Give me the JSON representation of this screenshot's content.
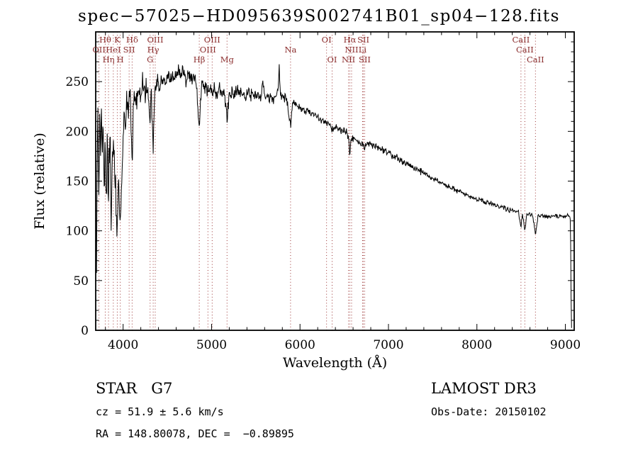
{
  "title": "spec−57025−HD095639S002741B01_sp04−128.fits",
  "colors": {
    "background": "#ffffff",
    "spectrum": "#000000",
    "frame": "#000000",
    "line_marker": "#9B3434",
    "line_label": "#8B2E2E",
    "text": "#000000"
  },
  "annotations": {
    "object_type": "STAR   G7",
    "cz": "cz = 51.9 ± 5.6 km/s",
    "ra_dec": "RA = 148.80078, DEC =  −0.89895",
    "survey": "LAMOST DR3",
    "obs_date": "Obs-Date: 20150102"
  },
  "chart_data": {
    "type": "line",
    "title": "spec−57025−HD095639S002741B01_sp04−128.fits",
    "xlabel": "Wavelength (Å)",
    "ylabel": "Flux (relative)",
    "xlim": [
      3690,
      9100
    ],
    "ylim": [
      0,
      300
    ],
    "x_major_ticks": [
      4000,
      5000,
      6000,
      7000,
      8000,
      9000
    ],
    "x_minor_step": 200,
    "y_major_ticks": [
      0,
      50,
      100,
      150,
      200,
      250
    ],
    "y_minor_step": 10,
    "grid": false,
    "legend": "none",
    "sample_step_angstrom": 5,
    "noise_seed": 20150102,
    "noise_profile": [
      {
        "from": 3700,
        "to": 4000,
        "amp": 30
      },
      {
        "from": 4000,
        "to": 4400,
        "amp": 16
      },
      {
        "from": 4400,
        "to": 5200,
        "amp": 10
      },
      {
        "from": 5200,
        "to": 5900,
        "amp": 7
      },
      {
        "from": 5900,
        "to": 6600,
        "amp": 5
      },
      {
        "from": 6600,
        "to": 7400,
        "amp": 4
      },
      {
        "from": 7400,
        "to": 8500,
        "amp": 3
      },
      {
        "from": 8500,
        "to": 9040,
        "amp": 2.5
      },
      {
        "from": 9040,
        "to": 9100,
        "amp": 1
      }
    ],
    "continuum_points": [
      [
        3700,
        55
      ],
      [
        3706,
        150
      ],
      [
        3712,
        225
      ],
      [
        3720,
        170
      ],
      [
        3728,
        150
      ],
      [
        3736,
        210
      ],
      [
        3744,
        165
      ],
      [
        3752,
        230
      ],
      [
        3760,
        175
      ],
      [
        3772,
        220
      ],
      [
        3784,
        150
      ],
      [
        3796,
        190
      ],
      [
        3808,
        135
      ],
      [
        3820,
        180
      ],
      [
        3835,
        145
      ],
      [
        3850,
        200
      ],
      [
        3865,
        120
      ],
      [
        3880,
        165
      ],
      [
        3895,
        190
      ],
      [
        3910,
        140
      ],
      [
        3925,
        115
      ],
      [
        3934,
        100
      ],
      [
        3945,
        145
      ],
      [
        3960,
        110
      ],
      [
        3968,
        105
      ],
      [
        3980,
        150
      ],
      [
        3995,
        180
      ],
      [
        4010,
        220
      ],
      [
        4025,
        200
      ],
      [
        4040,
        232
      ],
      [
        4060,
        226
      ],
      [
        4080,
        242
      ],
      [
        4102,
        168
      ],
      [
        4115,
        232
      ],
      [
        4130,
        242
      ],
      [
        4150,
        228
      ],
      [
        4170,
        246
      ],
      [
        4190,
        232
      ],
      [
        4210,
        242
      ],
      [
        4230,
        246
      ],
      [
        4250,
        236
      ],
      [
        4270,
        242
      ],
      [
        4290,
        232
      ],
      [
        4305,
        212
      ],
      [
        4320,
        238
      ],
      [
        4340,
        178
      ],
      [
        4355,
        242
      ],
      [
        4370,
        246
      ],
      [
        4390,
        250
      ],
      [
        4420,
        246
      ],
      [
        4450,
        255
      ],
      [
        4480,
        250
      ],
      [
        4510,
        256
      ],
      [
        4540,
        250
      ],
      [
        4560,
        258
      ],
      [
        4590,
        252
      ],
      [
        4620,
        262
      ],
      [
        4650,
        256
      ],
      [
        4680,
        260
      ],
      [
        4710,
        252
      ],
      [
        4740,
        258
      ],
      [
        4770,
        250
      ],
      [
        4800,
        254
      ],
      [
        4830,
        246
      ],
      [
        4861,
        202
      ],
      [
        4880,
        240
      ],
      [
        4900,
        248
      ],
      [
        4930,
        243
      ],
      [
        4960,
        240
      ],
      [
        4990,
        245
      ],
      [
        5007,
        238
      ],
      [
        5030,
        242
      ],
      [
        5060,
        238
      ],
      [
        5090,
        243
      ],
      [
        5120,
        240
      ],
      [
        5150,
        236
      ],
      [
        5175,
        216
      ],
      [
        5200,
        236
      ],
      [
        5230,
        240
      ],
      [
        5260,
        238
      ],
      [
        5290,
        242
      ],
      [
        5320,
        238
      ],
      [
        5350,
        240
      ],
      [
        5380,
        236
      ],
      [
        5410,
        239
      ],
      [
        5440,
        236
      ],
      [
        5470,
        238
      ],
      [
        5500,
        236
      ],
      [
        5530,
        234
      ],
      [
        5560,
        236
      ],
      [
        5577,
        250
      ],
      [
        5600,
        235
      ],
      [
        5630,
        236
      ],
      [
        5660,
        234
      ],
      [
        5690,
        233
      ],
      [
        5720,
        234
      ],
      [
        5750,
        238
      ],
      [
        5765,
        263
      ],
      [
        5780,
        237
      ],
      [
        5800,
        234
      ],
      [
        5830,
        232
      ],
      [
        5860,
        230
      ],
      [
        5893,
        206
      ],
      [
        5915,
        228
      ],
      [
        5945,
        227
      ],
      [
        5975,
        226
      ],
      [
        6010,
        224
      ],
      [
        6050,
        222
      ],
      [
        6090,
        220
      ],
      [
        6130,
        218
      ],
      [
        6170,
        216
      ],
      [
        6210,
        214
      ],
      [
        6250,
        212
      ],
      [
        6300,
        208
      ],
      [
        6330,
        207
      ],
      [
        6363,
        203
      ],
      [
        6400,
        205
      ],
      [
        6440,
        203
      ],
      [
        6480,
        201
      ],
      [
        6520,
        199
      ],
      [
        6548,
        194
      ],
      [
        6563,
        178
      ],
      [
        6580,
        193
      ],
      [
        6610,
        193
      ],
      [
        6640,
        191
      ],
      [
        6680,
        190
      ],
      [
        6716,
        186
      ],
      [
        6731,
        184
      ],
      [
        6770,
        188
      ],
      [
        6820,
        186
      ],
      [
        6870,
        184
      ],
      [
        6920,
        182
      ],
      [
        6980,
        179
      ],
      [
        7040,
        176
      ],
      [
        7100,
        173
      ],
      [
        7160,
        170
      ],
      [
        7220,
        167
      ],
      [
        7280,
        164
      ],
      [
        7340,
        161
      ],
      [
        7400,
        158
      ],
      [
        7460,
        155
      ],
      [
        7520,
        152
      ],
      [
        7580,
        149
      ],
      [
        7640,
        146
      ],
      [
        7700,
        144
      ],
      [
        7760,
        141
      ],
      [
        7820,
        139
      ],
      [
        7880,
        136
      ],
      [
        7940,
        134
      ],
      [
        8000,
        132
      ],
      [
        8060,
        130
      ],
      [
        8120,
        128
      ],
      [
        8180,
        127
      ],
      [
        8240,
        125
      ],
      [
        8300,
        123
      ],
      [
        8360,
        121
      ],
      [
        8420,
        120
      ],
      [
        8470,
        119
      ],
      [
        8498,
        103
      ],
      [
        8515,
        118
      ],
      [
        8542,
        100
      ],
      [
        8565,
        117
      ],
      [
        8600,
        116
      ],
      [
        8630,
        116
      ],
      [
        8662,
        96
      ],
      [
        8690,
        115
      ],
      [
        8730,
        115
      ],
      [
        8780,
        114
      ],
      [
        8830,
        114
      ],
      [
        8880,
        115
      ],
      [
        8930,
        114
      ],
      [
        8980,
        115
      ],
      [
        9020,
        116
      ],
      [
        9050,
        114
      ],
      [
        9058,
        110
      ],
      [
        9064,
        40
      ],
      [
        9070,
        2
      ]
    ],
    "spectral_lines": [
      {
        "label": "Hθ",
        "wavelength": 3798,
        "row": 1
      },
      {
        "label": "K",
        "wavelength": 3934,
        "row": 1
      },
      {
        "label": "Hδ",
        "wavelength": 4102,
        "row": 1
      },
      {
        "label": "OIII",
        "wavelength": 4363,
        "row": 1
      },
      {
        "label": "OIII",
        "wavelength": 5007,
        "row": 1
      },
      {
        "label": "OI",
        "wavelength": 6300,
        "row": 1
      },
      {
        "label": "Hα",
        "wavelength": 6563,
        "row": 1
      },
      {
        "label": "SII",
        "wavelength": 6716,
        "row": 1
      },
      {
        "label": "CaII",
        "wavelength": 8498,
        "row": 1
      },
      {
        "label": "OII",
        "wavelength": 3727,
        "row": 2
      },
      {
        "label": "HeI",
        "wavelength": 3889,
        "row": 2
      },
      {
        "label": "SII",
        "wavelength": 4068,
        "row": 2
      },
      {
        "label": "Hγ",
        "wavelength": 4340,
        "row": 2
      },
      {
        "label": "OIII",
        "wavelength": 4959,
        "row": 2
      },
      {
        "label": "Na",
        "wavelength": 5893,
        "row": 2
      },
      {
        "label": "NII",
        "wavelength": 6583,
        "row": 2
      },
      {
        "label": "Li",
        "wavelength": 6707,
        "row": 2
      },
      {
        "label": "CaII",
        "wavelength": 8542,
        "row": 2
      },
      {
        "label": "Hη",
        "wavelength": 3835,
        "row": 3
      },
      {
        "label": "H",
        "wavelength": 3968,
        "row": 3
      },
      {
        "label": "G",
        "wavelength": 4305,
        "row": 3
      },
      {
        "label": "Hβ",
        "wavelength": 4861,
        "row": 3
      },
      {
        "label": "Mg",
        "wavelength": 5175,
        "row": 3
      },
      {
        "label": "OI",
        "wavelength": 6363,
        "row": 3
      },
      {
        "label": "NII",
        "wavelength": 6548,
        "row": 3
      },
      {
        "label": "SII",
        "wavelength": 6731,
        "row": 3
      },
      {
        "label": "CaII",
        "wavelength": 8662,
        "row": 3
      }
    ]
  }
}
